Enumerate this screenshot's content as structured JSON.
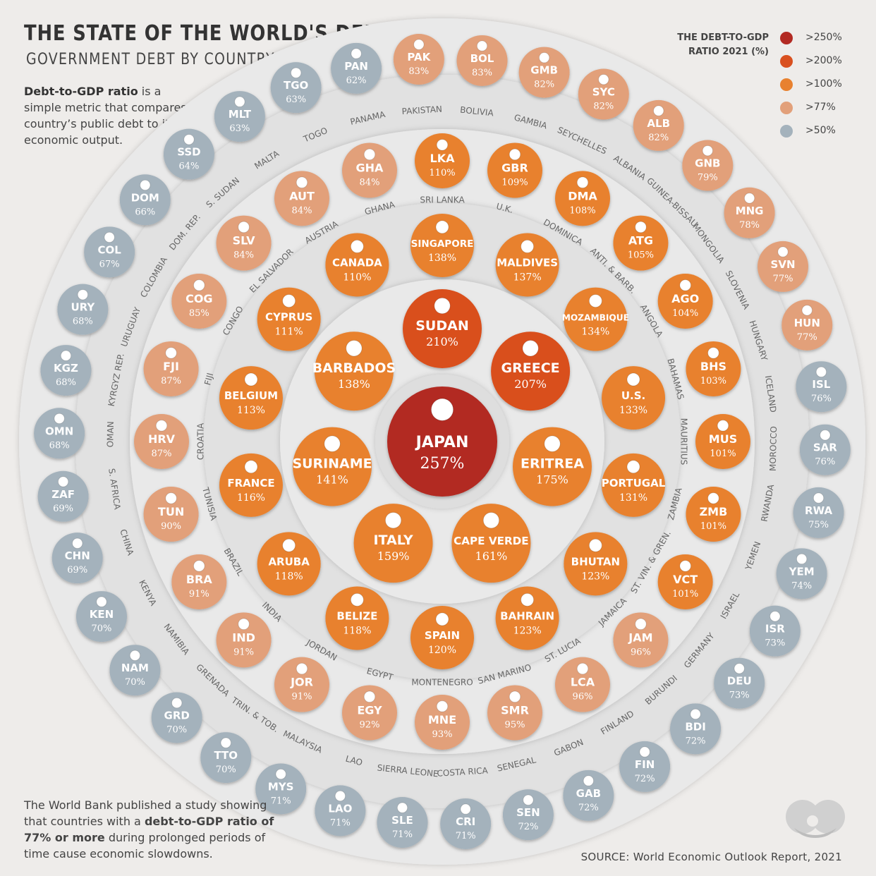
{
  "title": "THE STATE OF THE WORLD'S DEBT",
  "subtitle": "GOVERNMENT DEBT BY COUNTRY",
  "intro": {
    "bold": "Debt-to-GDP ratio",
    "rest": " is a simple metric that compares a country’s public debt to its economic output."
  },
  "footnote": {
    "part1": "The World Bank published a study showing that countries with a ",
    "bold": "debt-to-GDP ratio of 77% or more",
    "part2": " during prolonged periods of time cause economic slowdowns."
  },
  "source": "SOURCE: World Economic Outlook Report, 2021",
  "legend": {
    "title_line1": "THE DEBT-TO-GDP",
    "title_line2": "RATIO 2021 (%)",
    "items": [
      {
        "label": ">250%",
        "color": "#b22a23"
      },
      {
        "label": ">200%",
        "color": "#d9501f"
      },
      {
        "label": ">100%",
        "color": "#e8812f"
      },
      {
        "label": ">77%",
        "color": "#e2a07a"
      },
      {
        "label": ">50%",
        "color": "#a4b2bc"
      }
    ]
  },
  "colors": {
    "bg": "#eeecea",
    "ring_light": "#e6e6e6",
    "ring_dark": "#dcdcdc",
    "bubble_text": "#ffffff",
    "label_text": "#555555"
  },
  "chart_data": {
    "type": "bubble-rings",
    "unit": "%",
    "rings": [
      {
        "ring": 0,
        "countries": [
          {
            "name": "JAPAN",
            "value": 257
          }
        ]
      },
      {
        "ring": 1,
        "countries": [
          {
            "name": "SUDAN",
            "value": 210
          },
          {
            "name": "GREECE",
            "value": 207
          },
          {
            "name": "ERITREA",
            "value": 175
          },
          {
            "name": "CAPE VERDE",
            "value": 161
          },
          {
            "name": "ITALY",
            "value": 159
          },
          {
            "name": "SURINAME",
            "value": 141
          },
          {
            "name": "BARBADOS",
            "value": 138
          }
        ]
      },
      {
        "ring": 2,
        "countries": [
          {
            "name": "SINGAPORE",
            "value": 138
          },
          {
            "name": "MALDIVES",
            "value": 137
          },
          {
            "name": "MOZAMBIQUE",
            "value": 134
          },
          {
            "name": "U.S.",
            "value": 133
          },
          {
            "name": "PORTUGAL",
            "value": 131
          },
          {
            "name": "BHUTAN",
            "value": 123
          },
          {
            "name": "BAHRAIN",
            "value": 123
          },
          {
            "name": "SPAIN",
            "value": 120
          },
          {
            "name": "BELIZE",
            "value": 118
          },
          {
            "name": "ARUBA",
            "value": 118
          },
          {
            "name": "FRANCE",
            "value": 116
          },
          {
            "name": "BELGIUM",
            "value": 113
          },
          {
            "name": "CYPRUS",
            "value": 111
          },
          {
            "name": "CANADA",
            "value": 110
          }
        ]
      },
      {
        "ring": 3,
        "countries": [
          {
            "code": "LKA",
            "name": "SRI LANKA",
            "value": 110
          },
          {
            "code": "GBR",
            "name": "U.K.",
            "value": 109
          },
          {
            "code": "DMA",
            "name": "DOMINICA",
            "value": 108
          },
          {
            "code": "ATG",
            "name": "ANTI. & BARB.",
            "value": 105
          },
          {
            "code": "AGO",
            "name": "ANGOLA",
            "value": 104
          },
          {
            "code": "BHS",
            "name": "BAHAMAS",
            "value": 103
          },
          {
            "code": "MUS",
            "name": "MAURITIUS",
            "value": 101
          },
          {
            "code": "ZMB",
            "name": "ZAMBIA",
            "value": 101
          },
          {
            "code": "VCT",
            "name": "ST. VIN. & GREN.",
            "value": 101
          },
          {
            "code": "JAM",
            "name": "JAMAICA",
            "value": 96
          },
          {
            "code": "LCA",
            "name": "ST. LUCIA",
            "value": 96
          },
          {
            "code": "SMR",
            "name": "SAN MARINO",
            "value": 95
          },
          {
            "code": "MNE",
            "name": "MONTENEGRO",
            "value": 93
          },
          {
            "code": "EGY",
            "name": "EGYPT",
            "value": 92
          },
          {
            "code": "JOR",
            "name": "JORDAN",
            "value": 91
          },
          {
            "code": "IND",
            "name": "INDIA",
            "value": 91
          },
          {
            "code": "BRA",
            "name": "BRAZIL",
            "value": 91
          },
          {
            "code": "TUN",
            "name": "TUNISIA",
            "value": 90
          },
          {
            "code": "HRV",
            "name": "CROATIA",
            "value": 87
          },
          {
            "code": "FJI",
            "name": "FIJI",
            "value": 87
          },
          {
            "code": "COG",
            "name": "CONGO",
            "value": 85
          },
          {
            "code": "SLV",
            "name": "EL SALVADOR",
            "value": 84
          },
          {
            "code": "AUT",
            "name": "AUSTRIA",
            "value": 84
          },
          {
            "code": "GHA",
            "name": "GHANA",
            "value": 84
          }
        ]
      },
      {
        "ring": 4,
        "countries": [
          {
            "code": "PAK",
            "name": "PAKISTAN",
            "value": 83
          },
          {
            "code": "BOL",
            "name": "BOLIVIA",
            "value": 83
          },
          {
            "code": "GMB",
            "name": "GAMBIA",
            "value": 82
          },
          {
            "code": "SYC",
            "name": "SEYCHELLES",
            "value": 82
          },
          {
            "code": "ALB",
            "name": "ALBANIA",
            "value": 82
          },
          {
            "code": "GNB",
            "name": "GUINEA-BISSAU",
            "value": 79
          },
          {
            "code": "MNG",
            "name": "MONGOLIA",
            "value": 78
          },
          {
            "code": "SVN",
            "name": "SLOVENIA",
            "value": 77
          },
          {
            "code": "HUN",
            "name": "HUNGARY",
            "value": 77
          },
          {
            "code": "ISL",
            "name": "ICELAND",
            "value": 76
          },
          {
            "code": "SAR",
            "name": "MOROCCO",
            "value": 76
          },
          {
            "code": "RWA",
            "name": "RWANDA",
            "value": 75
          },
          {
            "code": "YEM",
            "name": "YEMEN",
            "value": 74
          },
          {
            "code": "ISR",
            "name": "ISRAEL",
            "value": 73
          },
          {
            "code": "DEU",
            "name": "GERMANY",
            "value": 73
          },
          {
            "code": "BDI",
            "name": "BURUNDI",
            "value": 72
          },
          {
            "code": "FIN",
            "name": "FINLAND",
            "value": 72
          },
          {
            "code": "GAB",
            "name": "GABON",
            "value": 72
          },
          {
            "code": "SEN",
            "name": "SENEGAL",
            "value": 72
          },
          {
            "code": "CRI",
            "name": "COSTA RICA",
            "value": 71
          },
          {
            "code": "SLE",
            "name": "SIERRA LEONE",
            "value": 71
          },
          {
            "code": "LAO",
            "name": "LAO",
            "value": 71
          },
          {
            "code": "MYS",
            "name": "MALAYSIA",
            "value": 71
          },
          {
            "code": "TTO",
            "name": "TRIN. & TOB.",
            "value": 70
          },
          {
            "code": "GRD",
            "name": "GRENADA",
            "value": 70
          },
          {
            "code": "NAM",
            "name": "NAMIBIA",
            "value": 70
          },
          {
            "code": "KEN",
            "name": "KENYA",
            "value": 70
          },
          {
            "code": "CHN",
            "name": "CHINA",
            "value": 69
          },
          {
            "code": "ZAF",
            "name": "S. AFRICA",
            "value": 69
          },
          {
            "code": "OMN",
            "name": "OMAN",
            "value": 68
          },
          {
            "code": "KGZ",
            "name": "KYRGYZ REP.",
            "value": 68
          },
          {
            "code": "URY",
            "name": "URUGUAY",
            "value": 68
          },
          {
            "code": "COL",
            "name": "COLOMBIA",
            "value": 67
          },
          {
            "code": "DOM",
            "name": "DOM. REP.",
            "value": 66
          },
          {
            "code": "SSD",
            "name": "S. SUDAN",
            "value": 64
          },
          {
            "code": "MLT",
            "name": "MALTA",
            "value": 63
          },
          {
            "code": "TGO",
            "name": "TOGO",
            "value": 63
          },
          {
            "code": "PAN",
            "name": "PANAMA",
            "value": 62
          }
        ]
      }
    ]
  }
}
